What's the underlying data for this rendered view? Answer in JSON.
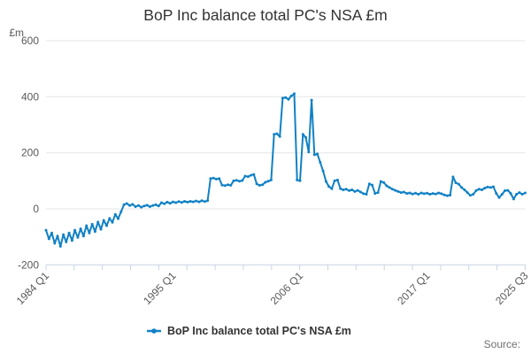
{
  "header": {
    "title": "BoP Inc balance total PC's NSA £m"
  },
  "footer": {
    "source_label": "Source:"
  },
  "legend": {
    "label": "BoP Inc balance total PC's NSA £m"
  },
  "colors": {
    "line": "#1181c5",
    "grid": "#e6e6e6",
    "axis": "#c8d4e4",
    "tick_text": "#595959",
    "title_text": "#333333",
    "source_text": "#707070"
  },
  "chart_data": {
    "type": "line",
    "title": "BoP Inc balance total PC's NSA £m",
    "xlabel": "",
    "ylabel": "£m",
    "ylim": [
      -200,
      600
    ],
    "yticks": [
      -200,
      0,
      200,
      400,
      600
    ],
    "grid": true,
    "legend_position": "bottom",
    "line_color": "#1181c5",
    "x_frequency": "quarterly",
    "x_start": "1984 Q1",
    "x_end": "2025 Q3",
    "xtick_labels": [
      {
        "label": "1984 Q1",
        "q": 0
      },
      {
        "label": "1995 Q1",
        "q": 44
      },
      {
        "label": "2006 Q1",
        "q": 88
      },
      {
        "label": "2017 Q1",
        "q": 132
      },
      {
        "label": "2025 Q3",
        "q": 166
      }
    ],
    "series": [
      {
        "name": "BoP Inc balance total PC's NSA £m",
        "values": [
          -76,
          -107,
          -86,
          -123,
          -97,
          -134,
          -92,
          -118,
          -86,
          -113,
          -76,
          -102,
          -71,
          -97,
          -60,
          -86,
          -55,
          -81,
          -47,
          -73,
          -41,
          -60,
          -34,
          -48,
          -20,
          -35,
          -10,
          15,
          19,
          12,
          16,
          8,
          12,
          6,
          10,
          13,
          8,
          12,
          15,
          10,
          22,
          18,
          24,
          20,
          25,
          22,
          26,
          23,
          27,
          24,
          27,
          25,
          28,
          25,
          29,
          26,
          29,
          108,
          110,
          106,
          108,
          85,
          83,
          86,
          84,
          100,
          102,
          99,
          101,
          117,
          115,
          120,
          123,
          89,
          84,
          86,
          95,
          99,
          103,
          266,
          268,
          258,
          395,
          397,
          391,
          403,
          411,
          103,
          100,
          266,
          255,
          203,
          388,
          193,
          196,
          166,
          135,
          98,
          80,
          72,
          100,
          103,
          72,
          68,
          70,
          65,
          68,
          62,
          66,
          60,
          54,
          52,
          89,
          85,
          55,
          58,
          98,
          94,
          82,
          76,
          70,
          66,
          62,
          58,
          60,
          55,
          57,
          53,
          56,
          52,
          57,
          54,
          56,
          52,
          55,
          53,
          57,
          54,
          50,
          47,
          49,
          114,
          93,
          88,
          76,
          68,
          58,
          48,
          52,
          65,
          70,
          68,
          74,
          78,
          76,
          79,
          55,
          40,
          52,
          65,
          66,
          55,
          35,
          52,
          58,
          52,
          57
        ]
      }
    ]
  }
}
